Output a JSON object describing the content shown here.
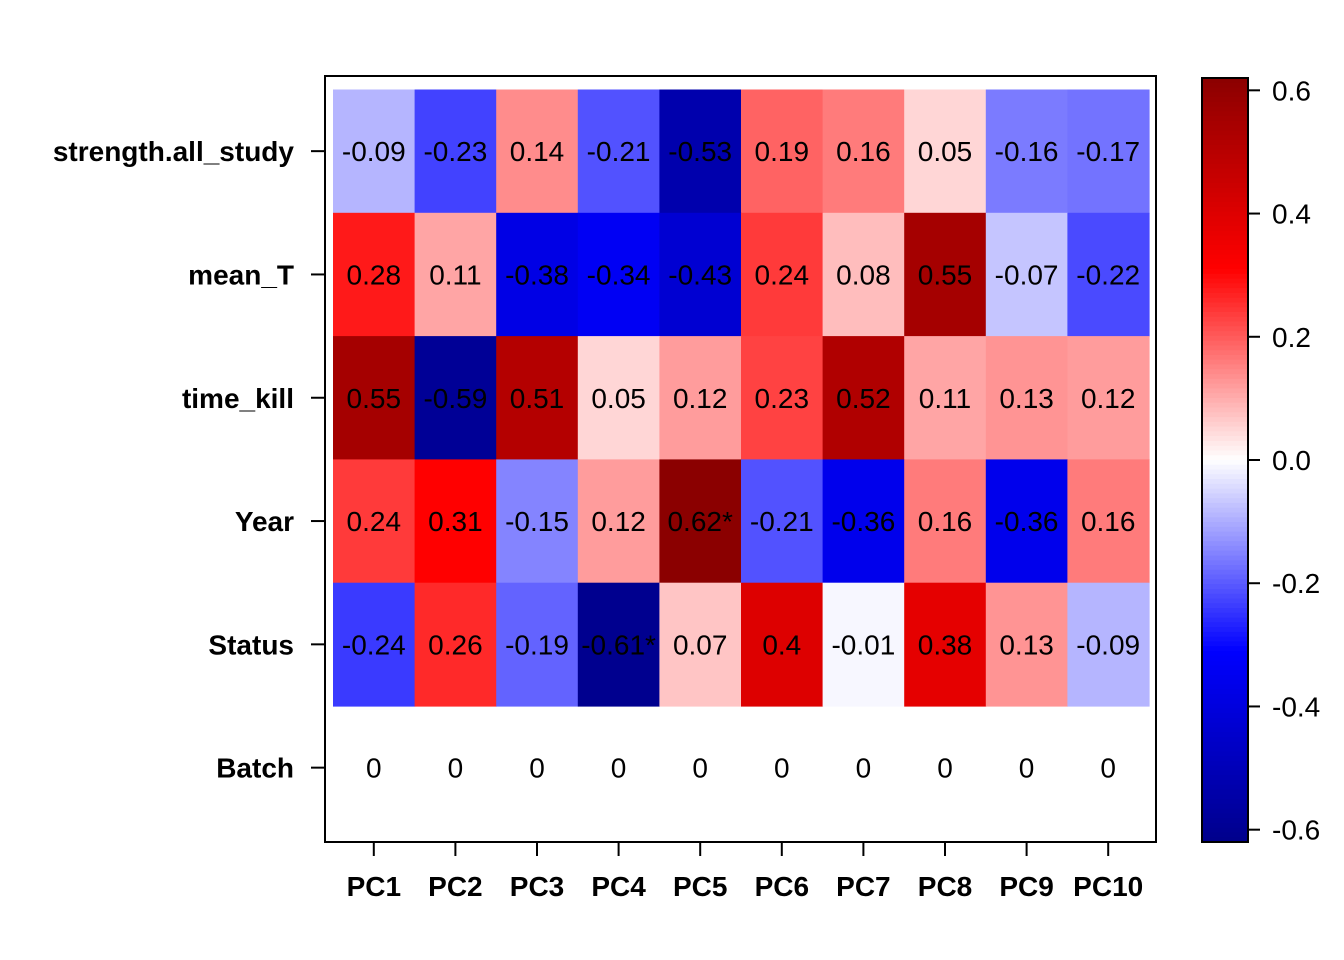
{
  "chart_data": {
    "type": "heatmap",
    "title": "",
    "xlabel": "",
    "ylabel": "",
    "x_categories": [
      "PC1",
      "PC2",
      "PC3",
      "PC4",
      "PC5",
      "PC6",
      "PC7",
      "PC8",
      "PC9",
      "PC10"
    ],
    "y_categories": [
      "strength.all_study",
      "mean_T",
      "time_kill",
      "Year",
      "Status",
      "Batch"
    ],
    "values": [
      [
        -0.09,
        -0.23,
        0.14,
        -0.21,
        -0.53,
        0.19,
        0.16,
        0.05,
        -0.16,
        -0.17
      ],
      [
        0.28,
        0.11,
        -0.38,
        -0.34,
        -0.43,
        0.24,
        0.08,
        0.55,
        -0.07,
        -0.22
      ],
      [
        0.55,
        -0.59,
        0.51,
        0.05,
        0.12,
        0.23,
        0.52,
        0.11,
        0.13,
        0.12
      ],
      [
        0.24,
        0.31,
        -0.15,
        0.12,
        0.62,
        -0.21,
        -0.36,
        0.16,
        -0.36,
        0.16
      ],
      [
        -0.24,
        0.26,
        -0.19,
        -0.61,
        0.07,
        0.4,
        -0.01,
        0.38,
        0.13,
        -0.09
      ],
      [
        null,
        null,
        null,
        null,
        null,
        null,
        null,
        null,
        null,
        null
      ]
    ],
    "cell_labels": [
      [
        "-0.09",
        "-0.23",
        "0.14",
        "-0.21",
        "-0.53",
        "0.19",
        "0.16",
        "0.05",
        "-0.16",
        "-0.17"
      ],
      [
        "0.28",
        "0.11",
        "-0.38",
        "-0.34",
        "-0.43",
        "0.24",
        "0.08",
        "0.55",
        "-0.07",
        "-0.22"
      ],
      [
        "0.55",
        "-0.59",
        "0.51",
        "0.05",
        "0.12",
        "0.23",
        "0.52",
        "0.11",
        "0.13",
        "0.12"
      ],
      [
        "0.24",
        "0.31",
        "-0.15",
        "0.12",
        "0.62*",
        "-0.21",
        "-0.36",
        "0.16",
        "-0.36",
        "0.16"
      ],
      [
        "-0.24",
        "0.26",
        "-0.19",
        "-0.61*",
        "0.07",
        "0.4",
        "-0.01",
        "0.38",
        "0.13",
        "-0.09"
      ],
      [
        "0",
        "0",
        "0",
        "0",
        "0",
        "0",
        "0",
        "0",
        "0",
        "0"
      ]
    ],
    "colorbar": {
      "range": [
        -0.62,
        0.62
      ],
      "ticks": [
        -0.6,
        -0.4,
        -0.2,
        0.0,
        0.2,
        0.4,
        0.6
      ],
      "tick_labels": [
        "-0.6",
        "-0.4",
        "-0.2",
        "0.0",
        "0.2",
        "0.4",
        "0.6"
      ],
      "colors": [
        "#00008B",
        "#0000FF",
        "#FFFFFF",
        "#FF0000",
        "#8B0000"
      ]
    },
    "legend": "colorbar-right",
    "grid": false
  }
}
